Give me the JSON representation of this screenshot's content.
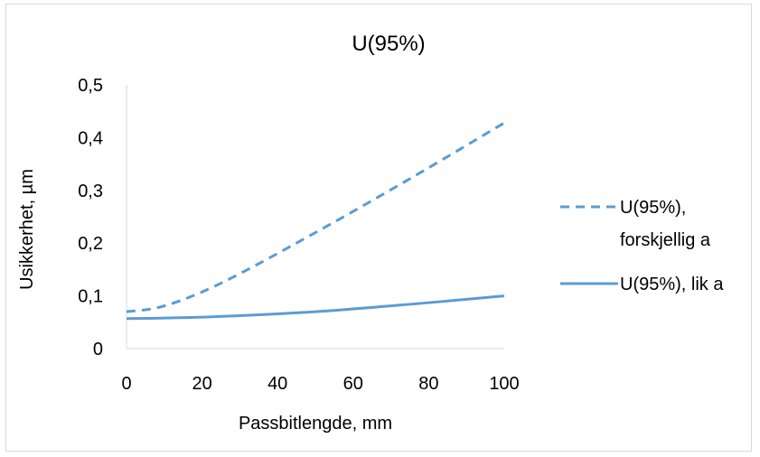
{
  "chart_data": {
    "type": "line",
    "title": "U(95%)",
    "xlabel": "Passbitlengde, mm",
    "ylabel": "Usikkerhet, µm",
    "xlim": [
      0,
      100
    ],
    "ylim": [
      0,
      0.5
    ],
    "xticks": [
      0,
      20,
      40,
      60,
      80,
      100
    ],
    "xtick_labels": [
      "0",
      "20",
      "40",
      "60",
      "80",
      "100"
    ],
    "yticks": [
      0,
      0.1,
      0.2,
      0.3,
      0.4,
      0.5
    ],
    "ytick_labels": [
      "0",
      "0,1",
      "0,2",
      "0,3",
      "0,4",
      "0,5"
    ],
    "grid": false,
    "legend_position": "right",
    "series": [
      {
        "name": "U(95%), forskjellig a",
        "style": "dashed",
        "color": "#5b9bd5",
        "x": [
          0,
          10,
          25,
          50,
          75,
          100
        ],
        "y": [
          0.07,
          0.081,
          0.124,
          0.22,
          0.322,
          0.428
        ]
      },
      {
        "name": "U(95%), lik a",
        "style": "solid",
        "color": "#5b9bd5",
        "x": [
          0,
          10,
          25,
          50,
          75,
          100
        ],
        "y": [
          0.057,
          0.058,
          0.061,
          0.07,
          0.084,
          0.1
        ]
      }
    ],
    "legend": {
      "entries": [
        {
          "lines": [
            "U(95%),",
            "forskjellig a"
          ]
        },
        {
          "lines": [
            "U(95%), lik a"
          ]
        }
      ]
    }
  }
}
